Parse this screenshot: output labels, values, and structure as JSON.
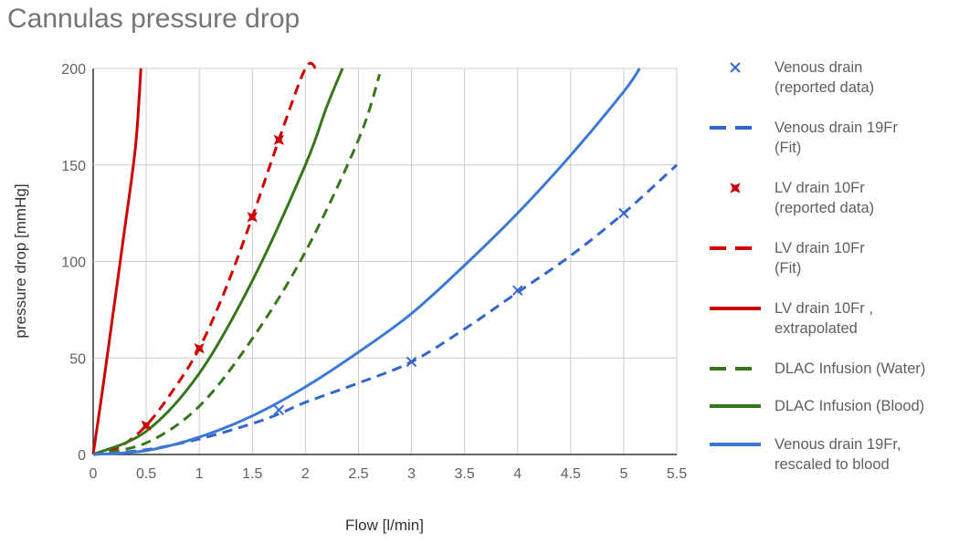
{
  "chart_data": {
    "type": "line",
    "title": "Cannulas pressure drop",
    "xlabel": "Flow [l/min]",
    "ylabel": "pressure drop [mmHg]",
    "xlim": [
      0,
      5.5
    ],
    "ylim": [
      0,
      200
    ],
    "x_ticks": [
      "0",
      "0.5",
      "1",
      "1.5",
      "2",
      "2.5",
      "3",
      "3.5",
      "4",
      "4.5",
      "5",
      "5.5"
    ],
    "y_ticks": [
      "0",
      "50",
      "100",
      "150",
      "200"
    ],
    "grid": true,
    "legend_position": "right",
    "series": [
      {
        "name": "Venous drain (reported data)",
        "kind": "points",
        "marker": "x",
        "color": "#3366cc",
        "x": [
          1.75,
          3,
          4,
          5
        ],
        "y": [
          23,
          48,
          85,
          125
        ]
      },
      {
        "name": "Venous drain 19Fr (Fit)",
        "kind": "line",
        "style": "dashed",
        "color": "#3366cc",
        "x": [
          0,
          0.5,
          1,
          1.5,
          1.75,
          2,
          2.5,
          3,
          3.5,
          4,
          4.5,
          5,
          5.5
        ],
        "y": [
          0,
          2.5,
          8,
          16,
          21,
          27,
          37,
          48,
          65,
          84,
          103,
          125,
          150
        ]
      },
      {
        "name": "LV drain 10Fr (reported data)",
        "kind": "points",
        "marker": "star4",
        "color": "#cc0000",
        "x": [
          0.5,
          1,
          1.5,
          1.75
        ],
        "y": [
          15,
          55,
          123,
          163
        ]
      },
      {
        "name": "LV drain 10Fr (Fit)",
        "kind": "line",
        "style": "dashed",
        "color": "#cc0000",
        "x": [
          0,
          0.25,
          0.5,
          0.75,
          1,
          1.25,
          1.5,
          1.75,
          2,
          2.1
        ],
        "y": [
          0,
          4,
          15,
          33,
          55,
          86,
          123,
          163,
          200,
          200
        ]
      },
      {
        "name": "LV drain 10Fr , extrapolated",
        "kind": "line",
        "style": "solid",
        "color": "#cc0000",
        "x": [
          0,
          0.1,
          0.2,
          0.3,
          0.4,
          0.45
        ],
        "y": [
          0,
          38,
          78,
          118,
          160,
          200
        ]
      },
      {
        "name": "DLAC Infusion (Water)",
        "kind": "line",
        "style": "dashed",
        "color": "#38761d",
        "x": [
          0,
          0.5,
          1,
          1.5,
          2,
          2.5,
          2.7
        ],
        "y": [
          0,
          6,
          25,
          60,
          105,
          163,
          197
        ]
      },
      {
        "name": "DLAC Infusion (Blood)",
        "kind": "line",
        "style": "solid",
        "color": "#38761d",
        "x": [
          0,
          0.5,
          1,
          1.5,
          2,
          2.2,
          2.35
        ],
        "y": [
          0,
          12,
          42,
          90,
          150,
          180,
          200
        ]
      },
      {
        "name": "Venous drain 19Fr, rescaled to blood",
        "kind": "line",
        "style": "solid",
        "color": "#3c78d8",
        "x": [
          0,
          0.5,
          1,
          1.5,
          2,
          2.5,
          3,
          3.5,
          4,
          4.5,
          5,
          5.15
        ],
        "y": [
          0,
          2,
          9,
          20,
          35,
          53,
          73,
          98,
          125,
          155,
          188,
          200
        ]
      }
    ],
    "legend": [
      {
        "series": 0,
        "lines": [
          "Venous drain",
          "(reported data)"
        ]
      },
      {
        "series": 1,
        "lines": [
          "Venous drain 19Fr",
          "(Fit)"
        ]
      },
      {
        "series": 2,
        "lines": [
          "LV drain 10Fr",
          "(reported data)"
        ]
      },
      {
        "series": 3,
        "lines": [
          "LV drain 10Fr",
          "(Fit)"
        ]
      },
      {
        "series": 4,
        "lines": [
          "LV drain 10Fr ,",
          "extrapolated"
        ]
      },
      {
        "series": 5,
        "lines": [
          "DLAC Infusion (Water)"
        ]
      },
      {
        "series": 6,
        "lines": [
          "DLAC Infusion (Blood)"
        ]
      },
      {
        "series": 7,
        "lines": [
          "Venous drain 19Fr,",
          "rescaled to blood"
        ]
      }
    ]
  }
}
